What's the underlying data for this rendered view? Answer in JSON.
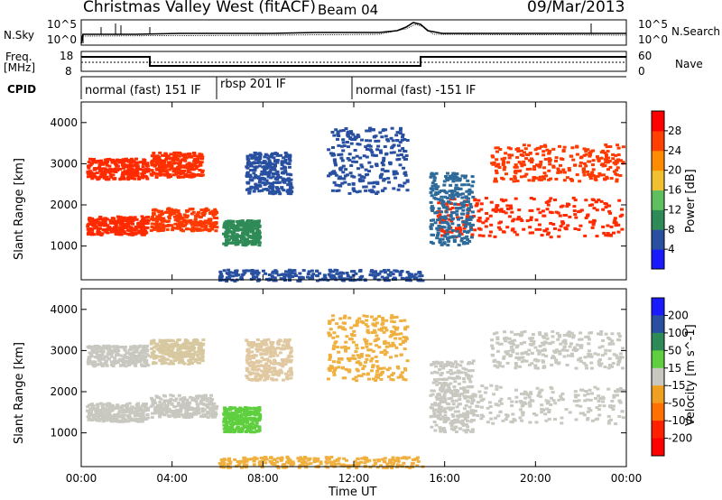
{
  "header": {
    "station": "Christmas Valley West (fitACF)",
    "beam": "Beam 04",
    "date": "09/Mar/2013"
  },
  "top_panels": {
    "nsky_label": "N.Sky",
    "nsky_ticks": [
      "10^5",
      "10^0"
    ],
    "nsearch_label": "N.Search",
    "nsearch_ticks": [
      "10^5",
      "10^0"
    ],
    "freq_label": "Freq.",
    "freq_unit": "[MHz]",
    "freq_ticks": [
      "18",
      "8"
    ],
    "nave_label": "Nave",
    "nave_ticks": [
      "60",
      "0"
    ],
    "cpid_label": "CPID",
    "cpid_segments": [
      {
        "label": "normal (fast) 151 IF",
        "start_hour": 0,
        "end_hour": 6
      },
      {
        "label": "rbsp 201 IF",
        "start_hour": 6,
        "end_hour": 12
      },
      {
        "label": "normal (fast) -151 IF",
        "start_hour": 12,
        "end_hour": 24
      }
    ]
  },
  "chart_data": [
    {
      "type": "heatmap",
      "name": "power",
      "xlabel": "",
      "ylabel": "Slant Range [km]",
      "xlim": [
        0,
        24
      ],
      "ylim": [
        180,
        4500
      ],
      "yticks": [
        1000,
        2000,
        3000,
        4000
      ],
      "colorbar": {
        "label": "Power [dB]",
        "ticks": [
          "4",
          "8",
          "12",
          "16",
          "20",
          "24",
          "28"
        ],
        "colors": [
          "#1a1aff",
          "#2950a0",
          "#2e8b57",
          "#5fbf5f",
          "#f0c030",
          "#ff8c00",
          "#ff4000",
          "#ff0000"
        ]
      },
      "bands": [
        {
          "t0": 0.2,
          "t1": 2.9,
          "r0": 2650,
          "r1": 3150,
          "color": "#ff2a00"
        },
        {
          "t0": 0.2,
          "t1": 2.9,
          "r0": 1300,
          "r1": 1750,
          "color": "#ff2a00"
        },
        {
          "t0": 3.0,
          "t1": 5.9,
          "r0": 1400,
          "r1": 1950,
          "color": "#ff3a00"
        },
        {
          "t0": 3.0,
          "t1": 5.3,
          "r0": 2700,
          "r1": 3300,
          "color": "#ff3000"
        },
        {
          "t0": 6.2,
          "t1": 7.8,
          "r0": 1050,
          "r1": 1650,
          "color": "#2e8b57"
        },
        {
          "t0": 7.2,
          "t1": 9.2,
          "r0": 2300,
          "r1": 3300,
          "color": "#2950a0"
        },
        {
          "t0": 10.8,
          "t1": 14.3,
          "r0": 2300,
          "r1": 3900,
          "color": "#2950a0"
        },
        {
          "t0": 15.6,
          "t1": 23.8,
          "r0": 1250,
          "r1": 2200,
          "color": "#ff2a00"
        },
        {
          "t0": 18.0,
          "t1": 23.8,
          "r0": 2600,
          "r1": 3500,
          "color": "#ff3a00"
        },
        {
          "t0": 15.3,
          "t1": 17.2,
          "r0": 1050,
          "r1": 2800,
          "color": "#2e6a9a"
        },
        {
          "t0": 6.0,
          "t1": 15.0,
          "r0": 180,
          "r1": 450,
          "color": "#2950a0"
        }
      ]
    },
    {
      "type": "heatmap",
      "name": "velocity",
      "xlabel": "Time UT",
      "ylabel": "Slant Range [km]",
      "xlim": [
        0,
        24
      ],
      "ylim": [
        180,
        4500
      ],
      "yticks": [
        1000,
        2000,
        3000,
        4000
      ],
      "xticks": [
        "00:00",
        "04:00",
        "08:00",
        "12:00",
        "16:00",
        "20:00",
        "00:00"
      ],
      "colorbar": {
        "label": "Velocity [m s^-1]",
        "ticks": [
          "200",
          "100",
          "50",
          "15",
          "-15",
          "-50",
          "-100",
          "-200"
        ],
        "colors": [
          "#1a1aff",
          "#2950a0",
          "#2e8b57",
          "#5fcf3f",
          "#c8c8c0",
          "#f0a020",
          "#ff7000",
          "#ff2000",
          "#ff0000"
        ]
      },
      "bands": [
        {
          "t0": 0.2,
          "t1": 2.9,
          "r0": 2650,
          "r1": 3150,
          "color": "#c8c8c0"
        },
        {
          "t0": 0.2,
          "t1": 2.9,
          "r0": 1300,
          "r1": 1750,
          "color": "#c8c8c0"
        },
        {
          "t0": 3.0,
          "t1": 5.9,
          "r0": 1400,
          "r1": 1950,
          "color": "#c8c8c0"
        },
        {
          "t0": 3.0,
          "t1": 5.3,
          "r0": 2700,
          "r1": 3300,
          "color": "#d8c8a0"
        },
        {
          "t0": 6.2,
          "t1": 7.8,
          "r0": 1050,
          "r1": 1650,
          "color": "#5fcf3f"
        },
        {
          "t0": 7.2,
          "t1": 9.2,
          "r0": 2300,
          "r1": 3300,
          "color": "#e0c8a0"
        },
        {
          "t0": 10.8,
          "t1": 14.3,
          "r0": 2300,
          "r1": 3900,
          "color": "#f0b040"
        },
        {
          "t0": 15.6,
          "t1": 23.8,
          "r0": 1250,
          "r1": 2200,
          "color": "#c8c8c0"
        },
        {
          "t0": 18.0,
          "t1": 23.8,
          "r0": 2600,
          "r1": 3500,
          "color": "#c8c8c0"
        },
        {
          "t0": 15.3,
          "t1": 17.2,
          "r0": 1050,
          "r1": 2800,
          "color": "#c8c8c0"
        },
        {
          "t0": 6.0,
          "t1": 15.0,
          "r0": 180,
          "r1": 450,
          "color": "#f0b040"
        }
      ]
    }
  ]
}
